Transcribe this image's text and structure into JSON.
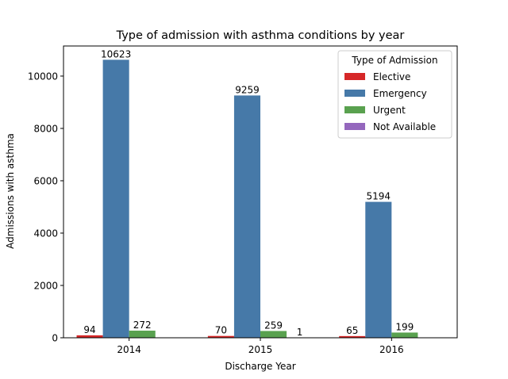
{
  "chart_data": {
    "type": "bar",
    "title": "Type of admission with asthma conditions by year",
    "xlabel": "Discharge Year",
    "ylabel": "Admissions with asthma",
    "categories": [
      "2014",
      "2015",
      "2016"
    ],
    "ylim": [
      0,
      11150
    ],
    "yticks": [
      0,
      2000,
      4000,
      6000,
      8000,
      10000
    ],
    "grid": false,
    "legend": {
      "title": "Type of Admission",
      "placement": "top-right"
    },
    "series": [
      {
        "name": "Elective",
        "color": "#d62728",
        "values": [
          94,
          70,
          65
        ],
        "labels": [
          "94",
          "70",
          "65"
        ]
      },
      {
        "name": "Emergency",
        "color": "#4679a8",
        "values": [
          10623,
          9259,
          5194
        ],
        "labels": [
          "10623",
          "9259",
          "5194"
        ]
      },
      {
        "name": "Urgent",
        "color": "#59a14f",
        "values": [
          272,
          259,
          199
        ],
        "labels": [
          "272",
          "259",
          "199"
        ]
      },
      {
        "name": "Not Available",
        "color": "#9467bd",
        "values": [
          0,
          1,
          0
        ],
        "labels": [
          "",
          "1",
          ""
        ]
      }
    ]
  }
}
